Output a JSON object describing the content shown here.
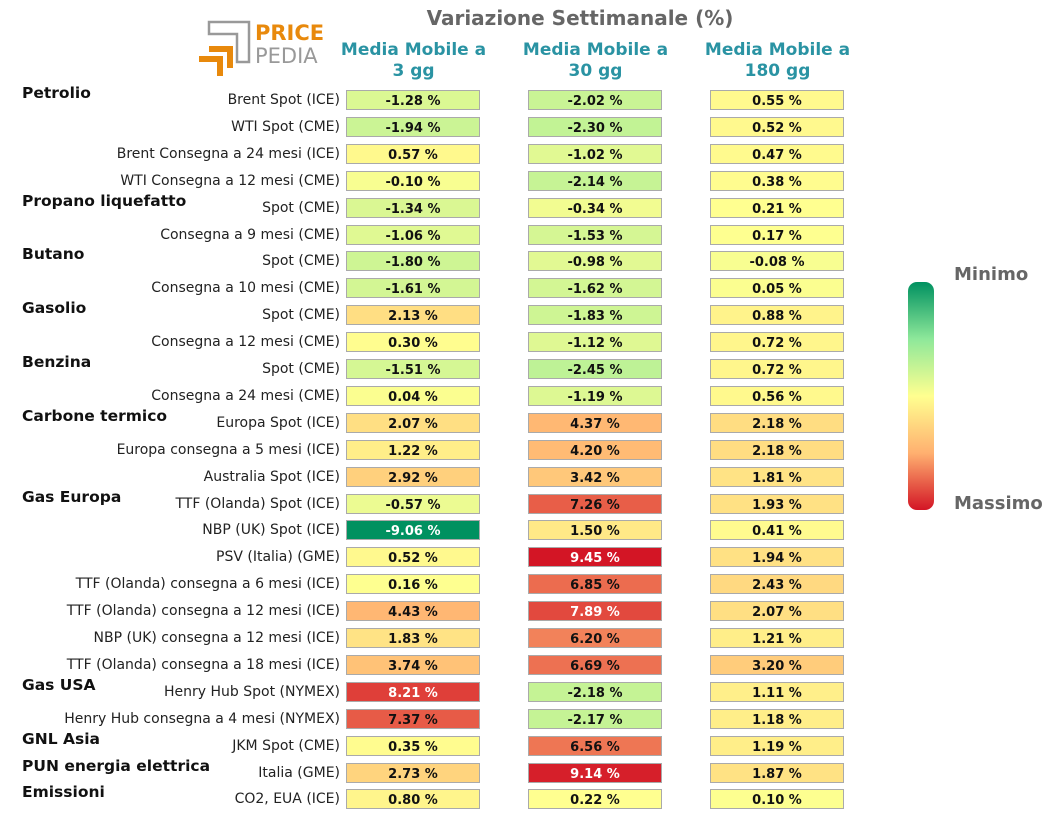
{
  "chart_data": {
    "type": "table",
    "title": "Variazione Settimanale (%)",
    "columns": [
      "Media Mobile a\n3 gg",
      "Media Mobile a\n30 gg",
      "Media Mobile a\n180 gg"
    ],
    "legend": {
      "min_label": "Minimo",
      "max_label": "Massimo"
    },
    "scale": {
      "min": -9.06,
      "max": 9.45,
      "colors": [
        "#009160",
        "#8ee89a",
        "#ffff90",
        "#ffb070",
        "#d31525"
      ]
    },
    "groups": [
      {
        "name": "Petrolio",
        "rows": [
          {
            "label": "Brent Spot (ICE)",
            "values": [
              -1.28,
              -2.02,
              0.55
            ]
          },
          {
            "label": "WTI Spot (CME)",
            "values": [
              -1.94,
              -2.3,
              0.52
            ]
          },
          {
            "label": "Brent Consegna a 24 mesi (ICE)",
            "values": [
              0.57,
              -1.02,
              0.47
            ]
          },
          {
            "label": "WTI Consegna a 12 mesi (CME)",
            "values": [
              -0.1,
              -2.14,
              0.38
            ]
          }
        ]
      },
      {
        "name": "Propano liquefatto",
        "rows": [
          {
            "label": "Spot (CME)",
            "values": [
              -1.34,
              -0.34,
              0.21
            ]
          },
          {
            "label": "Consegna a 9 mesi (CME)",
            "values": [
              -1.06,
              -1.53,
              0.17
            ]
          }
        ]
      },
      {
        "name": "Butano",
        "rows": [
          {
            "label": "Spot (CME)",
            "values": [
              -1.8,
              -0.98,
              -0.08
            ]
          },
          {
            "label": "Consegna a 10 mesi (CME)",
            "values": [
              -1.61,
              -1.62,
              0.05
            ]
          }
        ]
      },
      {
        "name": "Gasolio",
        "rows": [
          {
            "label": "Spot (CME)",
            "values": [
              2.13,
              -1.83,
              0.88
            ]
          },
          {
            "label": "Consegna a 12 mesi (CME)",
            "values": [
              0.3,
              -1.12,
              0.72
            ]
          }
        ]
      },
      {
        "name": "Benzina",
        "rows": [
          {
            "label": "Spot (CME)",
            "values": [
              -1.51,
              -2.45,
              0.72
            ]
          },
          {
            "label": "Consegna a 24 mesi (CME)",
            "values": [
              0.04,
              -1.19,
              0.56
            ]
          }
        ]
      },
      {
        "name": "Carbone termico",
        "rows": [
          {
            "label": "Europa Spot (ICE)",
            "values": [
              2.07,
              4.37,
              2.18
            ]
          },
          {
            "label": "Europa consegna a 5 mesi (ICE)",
            "values": [
              1.22,
              4.2,
              2.18
            ]
          },
          {
            "label": "Australia Spot (ICE)",
            "values": [
              2.92,
              3.42,
              1.81
            ]
          }
        ]
      },
      {
        "name": "Gas Europa",
        "rows": [
          {
            "label": "TTF (Olanda) Spot (ICE)",
            "values": [
              -0.57,
              7.26,
              1.93
            ]
          },
          {
            "label": "NBP (UK) Spot (ICE)",
            "values": [
              -9.06,
              1.5,
              0.41
            ]
          },
          {
            "label": "PSV (Italia) (GME)",
            "values": [
              0.52,
              9.45,
              1.94
            ]
          },
          {
            "label": "TTF (Olanda) consegna a 6 mesi (ICE)",
            "values": [
              0.16,
              6.85,
              2.43
            ]
          },
          {
            "label": "TTF (Olanda) consegna a 12 mesi (ICE)",
            "values": [
              4.43,
              7.89,
              2.07
            ]
          },
          {
            "label": "NBP (UK) consegna a 12 mesi (ICE)",
            "values": [
              1.83,
              6.2,
              1.21
            ]
          },
          {
            "label": "TTF (Olanda) consegna a 18 mesi (ICE)",
            "values": [
              3.74,
              6.69,
              3.2
            ]
          }
        ]
      },
      {
        "name": "Gas USA",
        "rows": [
          {
            "label": "Henry Hub Spot (NYMEX)",
            "values": [
              8.21,
              -2.18,
              1.11
            ]
          },
          {
            "label": "Henry Hub consegna a 4 mesi (NYMEX)",
            "values": [
              7.37,
              -2.17,
              1.18
            ]
          }
        ]
      },
      {
        "name": "GNL Asia",
        "rows": [
          {
            "label": "JKM Spot (CME)",
            "values": [
              0.35,
              6.56,
              1.19
            ]
          }
        ]
      },
      {
        "name": "PUN energia elettrica",
        "rows": [
          {
            "label": "Italia (GME)",
            "values": [
              2.73,
              9.14,
              1.87
            ]
          }
        ]
      },
      {
        "name": "Emissioni",
        "rows": [
          {
            "label": "CO2, EUA (ICE)",
            "values": [
              0.8,
              0.22,
              0.1
            ]
          }
        ]
      }
    ]
  },
  "logo": {
    "line1": "PRICE",
    "line2": "PEDIA",
    "colors": {
      "orange": "#e8890c",
      "gray": "#999999"
    }
  }
}
